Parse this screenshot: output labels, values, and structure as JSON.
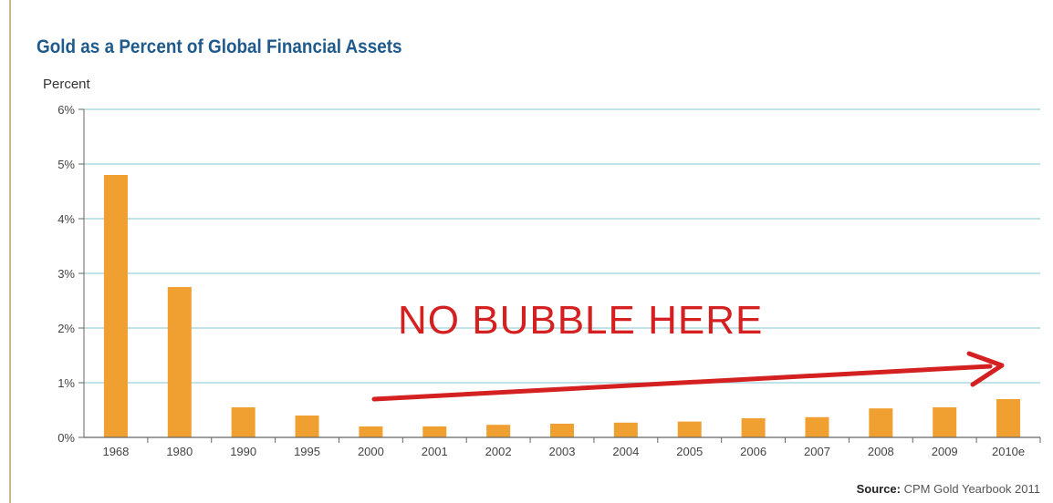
{
  "chart_data": {
    "type": "bar",
    "title": "Gold as a Percent of Global Financial Assets",
    "ylabel": "Percent",
    "xlabel": "",
    "categories": [
      "1968",
      "1980",
      "1990",
      "1995",
      "2000",
      "2001",
      "2002",
      "2003",
      "2004",
      "2005",
      "2006",
      "2007",
      "2008",
      "2009",
      "2010e"
    ],
    "values": [
      4.8,
      2.75,
      0.55,
      0.4,
      0.2,
      0.2,
      0.23,
      0.25,
      0.27,
      0.29,
      0.35,
      0.37,
      0.53,
      0.55,
      0.7
    ],
    "ylim": [
      0,
      6
    ],
    "yticks": [
      {
        "value": 0,
        "label": "0%"
      },
      {
        "value": 1,
        "label": "1%"
      },
      {
        "value": 2,
        "label": "2%"
      },
      {
        "value": 3,
        "label": "3%"
      },
      {
        "value": 4,
        "label": "4%"
      },
      {
        "value": 5,
        "label": "5%"
      },
      {
        "value": 6,
        "label": "6%"
      }
    ],
    "grid": true,
    "bar_color": "#f0a030",
    "grid_color": "#9cd0dc",
    "annotation": {
      "text": "NO BUBBLE HERE",
      "color": "#d42020"
    }
  },
  "source": {
    "label": "Source:",
    "text": "CPM Gold Yearbook 2011"
  }
}
